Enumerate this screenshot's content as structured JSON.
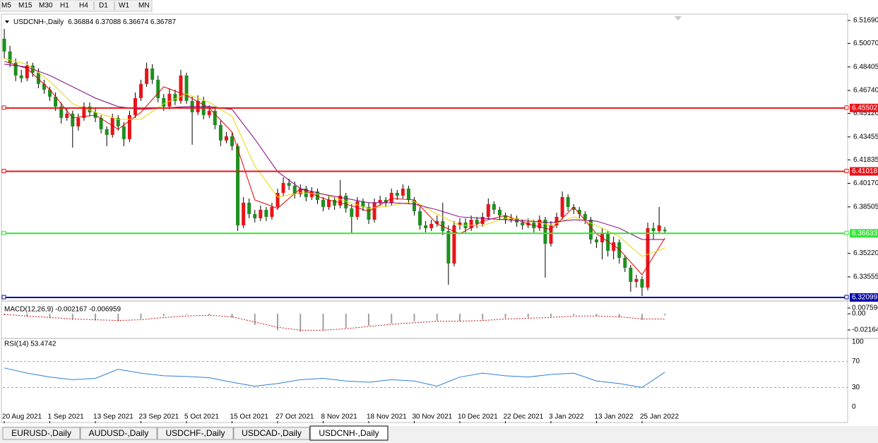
{
  "toolbar": {
    "timeframes": [
      "M5",
      "M15",
      "M30",
      "H1",
      "H4",
      "D1",
      "W1",
      "MN"
    ]
  },
  "chart_data": [
    {
      "type": "candlestick",
      "title": "USDCNH-,Daily",
      "ohlc_label": "6.36884 6.37088 6.36674 6.36787",
      "up_color": "#e8141a",
      "down_color": "#1e8f1e",
      "xlim": [
        -0.75,
        148.1
      ],
      "ylim": [
        6.319,
        6.5214
      ],
      "yticks": [
        {
          "value": 6.5169,
          "label": "6.51690"
        },
        {
          "value": 6.5007,
          "label": "6.50070"
        },
        6.48405,
        {
          "value": 6.4674,
          "label": "6.46740"
        },
        {
          "value": 6.4512,
          "label": "6.45120"
        },
        6.43455,
        6.41835,
        {
          "value": 6.4017,
          "label": "6.40170"
        },
        6.38505,
        {
          "value": 6.3522,
          "label": "6.35220"
        },
        6.33555
      ],
      "xticks": [
        {
          "value": 0,
          "label": "20 Aug 2021"
        },
        {
          "value": 8,
          "label": "1 Sep 2021"
        },
        {
          "value": 16,
          "label": "13 Sep 2021"
        },
        {
          "value": 24,
          "label": "23 Sep 2021"
        },
        {
          "value": 32,
          "label": "5 Oct 2021"
        },
        {
          "value": 40,
          "label": "15 Oct 2021"
        },
        {
          "value": 48,
          "label": "27 Oct 2021"
        },
        {
          "value": 56,
          "label": "8 Nov 2021"
        },
        {
          "value": 64,
          "label": "18 Nov 2021"
        },
        {
          "value": 72,
          "label": "30 Nov 2021"
        },
        {
          "value": 80,
          "label": "10 Dec 2021"
        },
        {
          "value": 88,
          "label": "22 Dec 2021"
        },
        {
          "value": 96,
          "label": "3 Jan 2022"
        },
        {
          "value": 104,
          "label": "13 Jan 2022"
        },
        {
          "value": 112,
          "label": "25 Jan 2022"
        }
      ],
      "levels": [
        6.45502,
        6.41018,
        6.36633,
        6.32099
      ],
      "level_colors": [
        "#e8141a",
        "#e8141a",
        "#33e633",
        "#0a0aa8"
      ],
      "candles": [
        [
          6.504,
          6.511,
          6.49,
          6.495
        ],
        [
          6.495,
          6.499,
          6.484,
          6.487
        ],
        [
          6.487,
          6.49,
          6.474,
          6.478
        ],
        [
          6.478,
          6.482,
          6.473,
          6.476
        ],
        [
          6.476,
          6.488,
          6.474,
          6.485
        ],
        [
          6.485,
          6.487,
          6.477,
          6.48
        ],
        [
          6.48,
          6.483,
          6.469,
          6.472
        ],
        [
          6.472,
          6.475,
          6.465,
          6.468
        ],
        [
          6.468,
          6.47,
          6.46,
          6.463
        ],
        [
          6.463,
          6.466,
          6.453,
          6.456
        ],
        [
          6.456,
          6.459,
          6.444,
          6.448
        ],
        [
          6.448,
          6.455,
          6.446,
          6.451
        ],
        [
          6.451,
          6.453,
          6.427,
          6.442
        ],
        [
          6.442,
          6.451,
          6.439,
          6.448
        ],
        [
          6.448,
          6.459,
          6.446,
          6.456
        ],
        [
          6.456,
          6.459,
          6.449,
          6.452
        ],
        [
          6.452,
          6.455,
          6.445,
          6.448
        ],
        [
          6.448,
          6.45,
          6.437,
          6.44
        ],
        [
          6.44,
          6.442,
          6.428,
          6.436
        ],
        [
          6.436,
          6.451,
          6.434,
          6.448
        ],
        [
          6.448,
          6.45,
          6.439,
          6.442
        ],
        [
          6.442,
          6.445,
          6.428,
          6.433
        ],
        [
          6.433,
          6.453,
          6.431,
          6.45
        ],
        [
          6.45,
          6.466,
          6.448,
          6.462
        ],
        [
          6.462,
          6.475,
          6.46,
          6.472
        ],
        [
          6.472,
          6.487,
          6.47,
          6.483
        ],
        [
          6.483,
          6.486,
          6.472,
          6.475
        ],
        [
          6.475,
          6.478,
          6.459,
          6.462
        ],
        [
          6.462,
          6.465,
          6.453,
          6.456
        ],
        [
          6.456,
          6.469,
          6.454,
          6.465
        ],
        [
          6.465,
          6.468,
          6.457,
          6.46
        ],
        [
          6.46,
          6.482,
          6.458,
          6.478
        ],
        [
          6.478,
          6.48,
          6.458,
          6.46
        ],
        [
          6.46,
          6.463,
          6.429,
          6.452
        ],
        [
          6.452,
          6.464,
          6.45,
          6.46
        ],
        [
          6.46,
          6.463,
          6.447,
          6.45
        ],
        [
          6.45,
          6.457,
          6.448,
          6.453
        ],
        [
          6.453,
          6.456,
          6.44,
          6.443
        ],
        [
          6.443,
          6.446,
          6.428,
          6.432
        ],
        [
          6.432,
          6.438,
          6.43,
          6.435
        ],
        [
          6.435,
          6.438,
          6.425,
          6.428
        ],
        [
          6.428,
          6.43,
          6.368,
          6.372
        ],
        [
          6.372,
          6.392,
          6.37,
          6.388
        ],
        [
          6.388,
          6.391,
          6.377,
          6.38
        ],
        [
          6.38,
          6.383,
          6.374,
          6.377
        ],
        [
          6.377,
          6.386,
          6.375,
          6.383
        ],
        [
          6.383,
          6.385,
          6.375,
          6.378
        ],
        [
          6.378,
          6.388,
          6.376,
          6.385
        ],
        [
          6.385,
          6.398,
          6.383,
          6.395
        ],
        [
          6.395,
          6.406,
          6.393,
          6.402
        ],
        [
          6.402,
          6.405,
          6.397,
          6.4
        ],
        [
          6.4,
          6.403,
          6.391,
          6.394
        ],
        [
          6.394,
          6.401,
          6.392,
          6.398
        ],
        [
          6.398,
          6.4,
          6.389,
          6.392
        ],
        [
          6.392,
          6.399,
          6.39,
          6.396
        ],
        [
          6.396,
          6.398,
          6.387,
          6.39
        ],
        [
          6.39,
          6.392,
          6.382,
          6.385
        ],
        [
          6.385,
          6.393,
          6.383,
          6.39
        ],
        [
          6.39,
          6.392,
          6.383,
          6.386
        ],
        [
          6.386,
          6.404,
          6.384,
          6.393
        ],
        [
          6.393,
          6.395,
          6.381,
          6.384
        ],
        [
          6.384,
          6.387,
          6.366,
          6.378
        ],
        [
          6.378,
          6.392,
          6.376,
          6.389
        ],
        [
          6.389,
          6.391,
          6.382,
          6.385
        ],
        [
          6.385,
          6.388,
          6.373,
          6.376
        ],
        [
          6.376,
          6.391,
          6.374,
          6.388
        ],
        [
          6.388,
          6.393,
          6.386,
          6.39
        ],
        [
          6.39,
          6.392,
          6.385,
          6.388
        ],
        [
          6.388,
          6.398,
          6.386,
          6.395
        ],
        [
          6.395,
          6.397,
          6.39,
          6.393
        ],
        [
          6.393,
          6.401,
          6.391,
          6.398
        ],
        [
          6.398,
          6.4,
          6.387,
          6.39
        ],
        [
          6.39,
          6.392,
          6.379,
          6.382
        ],
        [
          6.382,
          6.385,
          6.369,
          6.372
        ],
        [
          6.372,
          6.375,
          6.367,
          6.37
        ],
        [
          6.37,
          6.376,
          6.368,
          6.373
        ],
        [
          6.373,
          6.379,
          6.371,
          6.375
        ],
        [
          6.375,
          6.388,
          6.365,
          6.368
        ],
        [
          6.368,
          6.372,
          6.33,
          6.345
        ],
        [
          6.345,
          6.375,
          6.343,
          6.372
        ],
        [
          6.372,
          6.377,
          6.369,
          6.374
        ],
        [
          6.374,
          6.377,
          6.367,
          6.37
        ],
        [
          6.37,
          6.379,
          6.368,
          6.376
        ],
        [
          6.376,
          6.378,
          6.37,
          6.373
        ],
        [
          6.373,
          6.381,
          6.371,
          6.378
        ],
        [
          6.378,
          6.391,
          6.376,
          6.387
        ],
        [
          6.387,
          6.389,
          6.38,
          6.383
        ],
        [
          6.383,
          6.385,
          6.376,
          6.379
        ],
        [
          6.379,
          6.381,
          6.373,
          6.376
        ],
        [
          6.376,
          6.38,
          6.374,
          6.377
        ],
        [
          6.377,
          6.379,
          6.371,
          6.374
        ],
        [
          6.374,
          6.376,
          6.369,
          6.372
        ],
        [
          6.372,
          6.377,
          6.37,
          6.374
        ],
        [
          6.374,
          6.376,
          6.367,
          6.37
        ],
        [
          6.37,
          6.379,
          6.368,
          6.376
        ],
        [
          6.376,
          6.378,
          6.335,
          6.359
        ],
        [
          6.359,
          6.375,
          6.357,
          6.372
        ],
        [
          6.372,
          6.381,
          6.37,
          6.378
        ],
        [
          6.378,
          6.396,
          6.376,
          6.392
        ],
        [
          6.392,
          6.394,
          6.382,
          6.385
        ],
        [
          6.385,
          6.387,
          6.38,
          6.383
        ],
        [
          6.383,
          6.385,
          6.377,
          6.38
        ],
        [
          6.38,
          6.382,
          6.373,
          6.376
        ],
        [
          6.376,
          6.378,
          6.359,
          6.362
        ],
        [
          6.362,
          6.364,
          6.356,
          6.36
        ],
        [
          6.36,
          6.37,
          6.348,
          6.366
        ],
        [
          6.366,
          6.368,
          6.35,
          6.354
        ],
        [
          6.354,
          6.364,
          6.348,
          6.36
        ],
        [
          6.36,
          6.362,
          6.345,
          6.349
        ],
        [
          6.349,
          6.351,
          6.339,
          6.342
        ],
        [
          6.342,
          6.344,
          6.325,
          6.332
        ],
        [
          6.332,
          6.337,
          6.328,
          6.334
        ],
        [
          6.334,
          6.336,
          6.322,
          6.328
        ],
        [
          6.328,
          6.374,
          6.326,
          6.37
        ],
        [
          6.37,
          6.374,
          6.362,
          6.368
        ],
        [
          6.368,
          6.385,
          6.366,
          6.372
        ],
        [
          6.36884,
          6.37088,
          6.36674,
          6.36787
        ]
      ],
      "moving_averages": [
        {
          "color": "#e00000",
          "x": [
            0,
            4,
            8,
            12,
            16,
            20,
            24,
            28,
            32,
            36,
            40,
            44,
            48,
            52,
            56,
            60,
            64,
            68,
            72,
            76,
            80,
            84,
            88,
            92,
            96,
            100,
            104,
            108,
            112,
            116
          ],
          "values": [
            6.488,
            6.483,
            6.468,
            6.448,
            6.45,
            6.44,
            6.452,
            6.47,
            6.464,
            6.455,
            6.438,
            6.39,
            6.384,
            6.398,
            6.391,
            6.387,
            6.382,
            6.391,
            6.39,
            6.373,
            6.366,
            6.375,
            6.379,
            6.373,
            6.369,
            6.385,
            6.366,
            6.355,
            6.337,
            6.363
          ]
        },
        {
          "color": "#e6d800",
          "x": [
            0,
            4,
            8,
            12,
            16,
            20,
            24,
            28,
            32,
            36,
            40,
            44,
            48,
            52,
            56,
            60,
            64,
            68,
            72,
            76,
            80,
            84,
            88,
            92,
            96,
            100,
            104,
            108,
            112,
            116
          ],
          "values": [
            6.49,
            6.486,
            6.474,
            6.458,
            6.452,
            6.447,
            6.447,
            6.458,
            6.465,
            6.459,
            6.449,
            6.414,
            6.392,
            6.395,
            6.394,
            6.389,
            6.384,
            6.386,
            6.389,
            6.38,
            6.372,
            6.372,
            6.377,
            6.376,
            6.372,
            6.378,
            6.372,
            6.364,
            6.35,
            6.356
          ]
        },
        {
          "color": "#800080",
          "x": [
            0,
            4,
            8,
            12,
            16,
            20,
            24,
            28,
            32,
            36,
            40,
            44,
            48,
            52,
            56,
            60,
            64,
            68,
            72,
            76,
            80,
            84,
            88,
            92,
            96,
            100,
            104,
            108,
            112,
            116
          ],
          "values": [
            6.486,
            6.484,
            6.478,
            6.47,
            6.462,
            6.456,
            6.454,
            6.455,
            6.456,
            6.456,
            6.454,
            6.433,
            6.41,
            6.398,
            6.394,
            6.391,
            6.388,
            6.388,
            6.387,
            6.383,
            6.378,
            6.377,
            6.376,
            6.375,
            6.374,
            6.376,
            6.375,
            6.37,
            6.362,
            6.362
          ]
        }
      ]
    },
    {
      "type": "macd",
      "label": "MACD(12,26,9) -0.002167 -0.006959",
      "histogram_color": "#a0a0a0",
      "signal_color": "#d01010",
      "ylim": [
        -0.032,
        0.0142
      ],
      "yticks": [
        0.007596,
        {
          "value": 0,
          "label": "0.00"
        },
        -0.021644
      ],
      "x": [
        0,
        4,
        8,
        12,
        16,
        20,
        24,
        28,
        32,
        36,
        40,
        44,
        48,
        52,
        56,
        60,
        64,
        68,
        72,
        76,
        80,
        84,
        88,
        92,
        96,
        100,
        104,
        108,
        112,
        116
      ],
      "histogram": [
        -0.002,
        -0.004,
        -0.006,
        -0.008,
        -0.009,
        -0.01,
        -0.007,
        -0.003,
        -0.001,
        -0.002,
        -0.005,
        -0.015,
        -0.022,
        -0.024,
        -0.022,
        -0.019,
        -0.016,
        -0.013,
        -0.01,
        -0.009,
        -0.01,
        -0.008,
        -0.006,
        -0.005,
        -0.004,
        -0.002,
        -0.003,
        -0.005,
        -0.008,
        -0.002167
      ],
      "signal": [
        -0.001,
        -0.003,
        -0.005,
        -0.007,
        -0.008,
        -0.009,
        -0.008,
        -0.005,
        -0.003,
        -0.002,
        -0.004,
        -0.011,
        -0.018,
        -0.022,
        -0.022,
        -0.02,
        -0.017,
        -0.014,
        -0.012,
        -0.01,
        -0.01,
        -0.009,
        -0.007,
        -0.006,
        -0.005,
        -0.003,
        -0.003,
        -0.004,
        -0.007,
        -0.006959
      ]
    },
    {
      "type": "line",
      "label": "RSI(14) 53.4742",
      "color": "#2f7fd8",
      "ylim": [
        0,
        100
      ],
      "yticks": [
        100,
        70,
        30,
        0
      ],
      "x": [
        0,
        4,
        8,
        12,
        16,
        20,
        24,
        28,
        32,
        36,
        40,
        44,
        48,
        52,
        56,
        60,
        64,
        68,
        72,
        76,
        80,
        84,
        88,
        92,
        96,
        100,
        104,
        108,
        112,
        116
      ],
      "values": [
        60,
        52,
        46,
        42,
        44,
        58,
        52,
        48,
        47,
        45,
        38,
        32,
        36,
        42,
        44,
        40,
        38,
        42,
        40,
        32,
        46,
        52,
        48,
        46,
        50,
        52,
        40,
        36,
        30,
        53.4742
      ]
    }
  ],
  "tabs": [
    "EURUSD-,Daily",
    "AUDUSD-,Daily",
    "USDCHF-,Daily",
    "USDCAD-,Daily",
    "USDCNH-,Daily"
  ],
  "active_tab": 4
}
